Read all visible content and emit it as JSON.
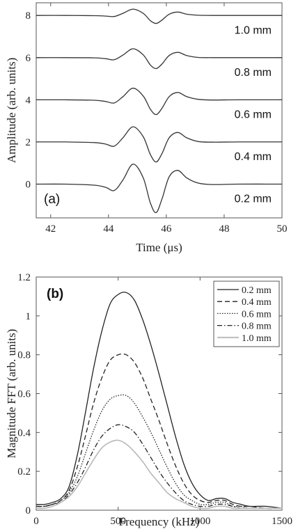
{
  "chart_data": [
    {
      "id": "a",
      "type": "line",
      "panel_tag": "(a)",
      "xlabel": "Time (μs)",
      "ylabel": "Amplitude (arb. units)",
      "xlim": [
        41.5,
        50
      ],
      "ylim": [
        -1.6,
        8.6
      ],
      "xticks": [
        42,
        44,
        46,
        48,
        50
      ],
      "yticks": [
        0,
        2,
        4,
        6,
        8
      ],
      "grid": false,
      "series": [
        {
          "name": "0.2 mm",
          "offset": 0,
          "amplitude": 1.0,
          "x": [
            41.5,
            42.5,
            43.5,
            43.9,
            44.2,
            44.5,
            44.85,
            45.2,
            45.45,
            45.65,
            45.85,
            46.1,
            46.4,
            46.7,
            47.1,
            47.6,
            48.5,
            50
          ],
          "y": [
            0,
            0,
            -0.05,
            -0.15,
            -0.3,
            0.2,
            0.95,
            0.3,
            -0.9,
            -1.35,
            -0.7,
            0.35,
            0.65,
            0.3,
            0.05,
            -0.02,
            0,
            0
          ]
        },
        {
          "name": "0.4 mm",
          "offset": 2,
          "amplitude": 0.75,
          "x": [
            41.5,
            42.5,
            43.5,
            43.9,
            44.2,
            44.5,
            44.85,
            45.2,
            45.45,
            45.65,
            45.85,
            46.1,
            46.4,
            46.7,
            47.1,
            47.6,
            48.5,
            50
          ],
          "y": [
            2,
            2,
            1.97,
            1.9,
            1.8,
            2.2,
            2.72,
            2.25,
            1.4,
            1.05,
            1.45,
            2.2,
            2.45,
            2.2,
            2.02,
            1.99,
            2,
            2
          ]
        },
        {
          "name": "0.6 mm",
          "offset": 4,
          "amplitude": 0.55,
          "x": [
            41.5,
            42.5,
            43.5,
            43.9,
            44.2,
            44.5,
            44.85,
            45.2,
            45.45,
            45.65,
            45.85,
            46.1,
            46.4,
            46.7,
            47.1,
            47.6,
            48.5,
            50
          ],
          "y": [
            4,
            4,
            3.98,
            3.92,
            3.85,
            4.15,
            4.55,
            4.18,
            3.55,
            3.3,
            3.6,
            4.15,
            4.35,
            4.15,
            4.02,
            3.99,
            4,
            4
          ]
        },
        {
          "name": "0.8 mm",
          "offset": 6,
          "amplitude": 0.4,
          "x": [
            41.5,
            42.5,
            43.5,
            43.9,
            44.2,
            44.5,
            44.85,
            45.2,
            45.45,
            45.65,
            45.85,
            46.1,
            46.4,
            46.7,
            47.1,
            47.6,
            48.5,
            50
          ],
          "y": [
            6,
            6,
            5.99,
            5.95,
            5.9,
            6.12,
            6.42,
            6.13,
            5.65,
            5.48,
            5.7,
            6.1,
            6.25,
            6.1,
            6.01,
            6,
            6,
            6
          ]
        },
        {
          "name": "1.0 mm",
          "offset": 8,
          "amplitude": 0.3,
          "x": [
            41.5,
            42.5,
            43.5,
            43.9,
            44.2,
            44.5,
            44.85,
            45.2,
            45.45,
            45.65,
            45.85,
            46.1,
            46.4,
            46.7,
            47.1,
            47.6,
            48.5,
            50
          ],
          "y": [
            8,
            8,
            7.99,
            7.97,
            7.95,
            8.1,
            8.3,
            8.1,
            7.75,
            7.62,
            7.78,
            8.06,
            8.16,
            8.06,
            8.01,
            8,
            8,
            8
          ]
        }
      ]
    },
    {
      "id": "b",
      "type": "line",
      "panel_tag": "(b)",
      "xlabel": "Frequency (kHz)",
      "ylabel": "Magnitude FFT (arb. units)",
      "xlim": [
        0,
        1500
      ],
      "ylim": [
        0,
        1.2
      ],
      "xticks": [
        0,
        500,
        1000,
        1500
      ],
      "yticks": [
        0,
        0.2,
        0.4,
        0.6,
        0.8,
        1,
        1.2
      ],
      "ytick_labels": [
        "0",
        "0.2",
        "0.4",
        "0.6",
        "0.8",
        "1",
        "1.2"
      ],
      "grid": false,
      "legend": "top-right",
      "series": [
        {
          "name": "0.2 mm",
          "style": "solid",
          "color": "#222222",
          "x": [
            0,
            50,
            100,
            150,
            200,
            250,
            300,
            350,
            400,
            450,
            500,
            550,
            600,
            650,
            700,
            750,
            800,
            850,
            900,
            950,
            1000,
            1050,
            1100,
            1150,
            1200,
            1250,
            1300,
            1400,
            1500
          ],
          "y": [
            0.03,
            0.03,
            0.04,
            0.06,
            0.12,
            0.28,
            0.5,
            0.73,
            0.92,
            1.06,
            1.11,
            1.12,
            1.08,
            0.98,
            0.85,
            0.7,
            0.54,
            0.38,
            0.24,
            0.14,
            0.08,
            0.05,
            0.06,
            0.06,
            0.04,
            0.03,
            0.02,
            0.02,
            0.01
          ]
        },
        {
          "name": "0.4 mm",
          "style": "dashed",
          "color": "#222222",
          "x": [
            0,
            50,
            100,
            150,
            200,
            250,
            300,
            350,
            400,
            450,
            500,
            550,
            600,
            650,
            700,
            750,
            800,
            850,
            900,
            950,
            1000,
            1050,
            1100,
            1150,
            1200,
            1250,
            1300,
            1400,
            1500
          ],
          "y": [
            0.02,
            0.02,
            0.03,
            0.05,
            0.1,
            0.22,
            0.38,
            0.55,
            0.68,
            0.77,
            0.8,
            0.8,
            0.76,
            0.68,
            0.57,
            0.46,
            0.34,
            0.23,
            0.14,
            0.08,
            0.05,
            0.04,
            0.05,
            0.05,
            0.03,
            0.02,
            0.02,
            0.01,
            0.01
          ]
        },
        {
          "name": "0.6 mm",
          "style": "dotted",
          "color": "#222222",
          "x": [
            0,
            50,
            100,
            150,
            200,
            250,
            300,
            350,
            400,
            450,
            500,
            550,
            600,
            650,
            700,
            750,
            800,
            850,
            900,
            950,
            1000,
            1050,
            1100,
            1150,
            1200,
            1250,
            1300,
            1400,
            1500
          ],
          "y": [
            0.02,
            0.02,
            0.03,
            0.05,
            0.09,
            0.17,
            0.29,
            0.41,
            0.51,
            0.57,
            0.59,
            0.59,
            0.55,
            0.48,
            0.4,
            0.31,
            0.22,
            0.14,
            0.08,
            0.05,
            0.03,
            0.03,
            0.04,
            0.04,
            0.02,
            0.02,
            0.01,
            0.01,
            0.01
          ]
        },
        {
          "name": "0.8 mm",
          "style": "dashdot",
          "color": "#222222",
          "x": [
            0,
            50,
            100,
            150,
            200,
            250,
            300,
            350,
            400,
            450,
            500,
            550,
            600,
            650,
            700,
            750,
            800,
            850,
            900,
            950,
            1000,
            1050,
            1100,
            1150,
            1200,
            1250,
            1300,
            1400,
            1500
          ],
          "y": [
            0.02,
            0.02,
            0.03,
            0.04,
            0.08,
            0.14,
            0.22,
            0.31,
            0.38,
            0.42,
            0.44,
            0.43,
            0.4,
            0.34,
            0.27,
            0.2,
            0.14,
            0.09,
            0.05,
            0.03,
            0.02,
            0.02,
            0.03,
            0.03,
            0.02,
            0.01,
            0.01,
            0.01,
            0.01
          ]
        },
        {
          "name": "1.0 mm",
          "style": "solid",
          "color": "#b8b8b8",
          "x": [
            0,
            50,
            100,
            150,
            200,
            250,
            300,
            350,
            400,
            450,
            500,
            550,
            600,
            650,
            700,
            750,
            800,
            850,
            900,
            950,
            1000,
            1050,
            1100,
            1150,
            1200,
            1250,
            1300,
            1400,
            1500
          ],
          "y": [
            0.01,
            0.01,
            0.02,
            0.04,
            0.07,
            0.12,
            0.19,
            0.26,
            0.32,
            0.35,
            0.36,
            0.34,
            0.3,
            0.25,
            0.19,
            0.14,
            0.09,
            0.06,
            0.04,
            0.02,
            0.01,
            0.01,
            0.02,
            0.02,
            0.01,
            0.01,
            0.01,
            0.01,
            0.01
          ]
        }
      ]
    }
  ]
}
